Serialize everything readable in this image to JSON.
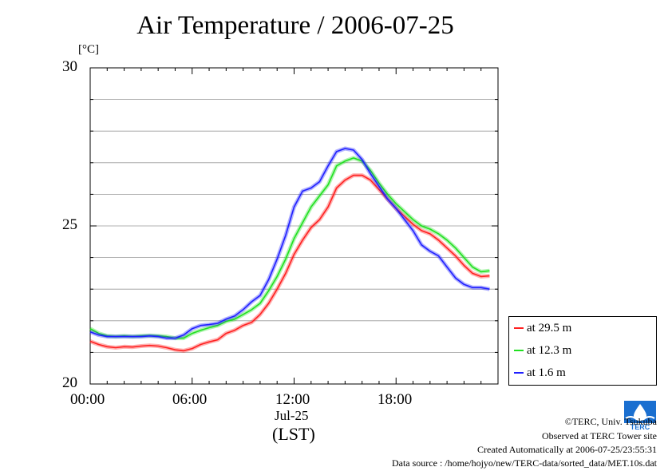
{
  "chart_data": {
    "type": "line",
    "title": "Air Temperature / 2006-07-25",
    "ylabel": "[°C]",
    "xlabel": "(LST)",
    "date_label": "Jul-25",
    "ylim": [
      20,
      30
    ],
    "xlim": [
      "00:00",
      "24:00"
    ],
    "y_ticks": [
      "20",
      "25",
      "30"
    ],
    "x_ticks": [
      "00:00",
      "06:00",
      "12:00",
      "18:00"
    ],
    "grid": true,
    "legend_position": "right",
    "x_hours": [
      0,
      0.5,
      1,
      1.5,
      2,
      2.5,
      3,
      3.5,
      4,
      4.5,
      5,
      5.5,
      6,
      6.5,
      7,
      7.5,
      8,
      8.5,
      9,
      9.5,
      10,
      10.5,
      11,
      11.5,
      12,
      12.5,
      13,
      13.5,
      14,
      14.5,
      15,
      15.5,
      16,
      16.5,
      17,
      17.5,
      18,
      18.5,
      19,
      19.5,
      20,
      20.5,
      21,
      21.5,
      22,
      22.5,
      23,
      23.5
    ],
    "series": [
      {
        "name": "at 29.5 m",
        "color": "#ff2020",
        "values": [
          21.35,
          21.25,
          21.18,
          21.15,
          21.18,
          21.17,
          21.2,
          21.22,
          21.2,
          21.15,
          21.08,
          21.05,
          21.12,
          21.25,
          21.33,
          21.4,
          21.6,
          21.7,
          21.85,
          21.95,
          22.2,
          22.55,
          23.0,
          23.5,
          24.1,
          24.55,
          24.95,
          25.2,
          25.6,
          26.2,
          26.45,
          26.6,
          26.6,
          26.45,
          26.15,
          25.85,
          25.55,
          25.3,
          25.05,
          24.85,
          24.75,
          24.55,
          24.3,
          24.05,
          23.75,
          23.5,
          23.4,
          23.42
        ]
      },
      {
        "name": "at 12.3 m",
        "color": "#20e020",
        "values": [
          21.75,
          21.6,
          21.52,
          21.5,
          21.52,
          21.5,
          21.52,
          21.53,
          21.52,
          21.5,
          21.45,
          21.45,
          21.6,
          21.7,
          21.78,
          21.85,
          21.98,
          22.05,
          22.2,
          22.35,
          22.55,
          22.95,
          23.4,
          23.95,
          24.6,
          25.1,
          25.6,
          25.95,
          26.3,
          26.9,
          27.05,
          27.15,
          27.05,
          26.75,
          26.35,
          26.0,
          25.7,
          25.45,
          25.2,
          25.0,
          24.9,
          24.75,
          24.55,
          24.3,
          24.0,
          23.7,
          23.55,
          23.58
        ]
      },
      {
        "name": "at 1.6 m",
        "color": "#2020ff",
        "values": [
          21.65,
          21.55,
          21.5,
          21.5,
          21.5,
          21.5,
          21.5,
          21.52,
          21.5,
          21.45,
          21.45,
          21.55,
          21.75,
          21.85,
          21.88,
          21.92,
          22.05,
          22.15,
          22.35,
          22.6,
          22.8,
          23.3,
          23.95,
          24.7,
          25.6,
          26.1,
          26.2,
          26.4,
          26.9,
          27.35,
          27.45,
          27.4,
          27.1,
          26.65,
          26.25,
          25.85,
          25.55,
          25.2,
          24.85,
          24.4,
          24.2,
          24.05,
          23.7,
          23.35,
          23.15,
          23.05,
          23.05,
          23.0
        ]
      }
    ]
  },
  "credits": {
    "copyright": "©TERC, Univ. Tsukuba",
    "observed": "Observed at TERC Tower site",
    "created": "Created Automatically at 2006-07-25/23:55:31",
    "source": "Data source : /home/hojyo/new/TERC-data/sorted_data/MET.10s.dat"
  },
  "logo": {
    "text": "TERC",
    "color": "#1a6fd0"
  }
}
